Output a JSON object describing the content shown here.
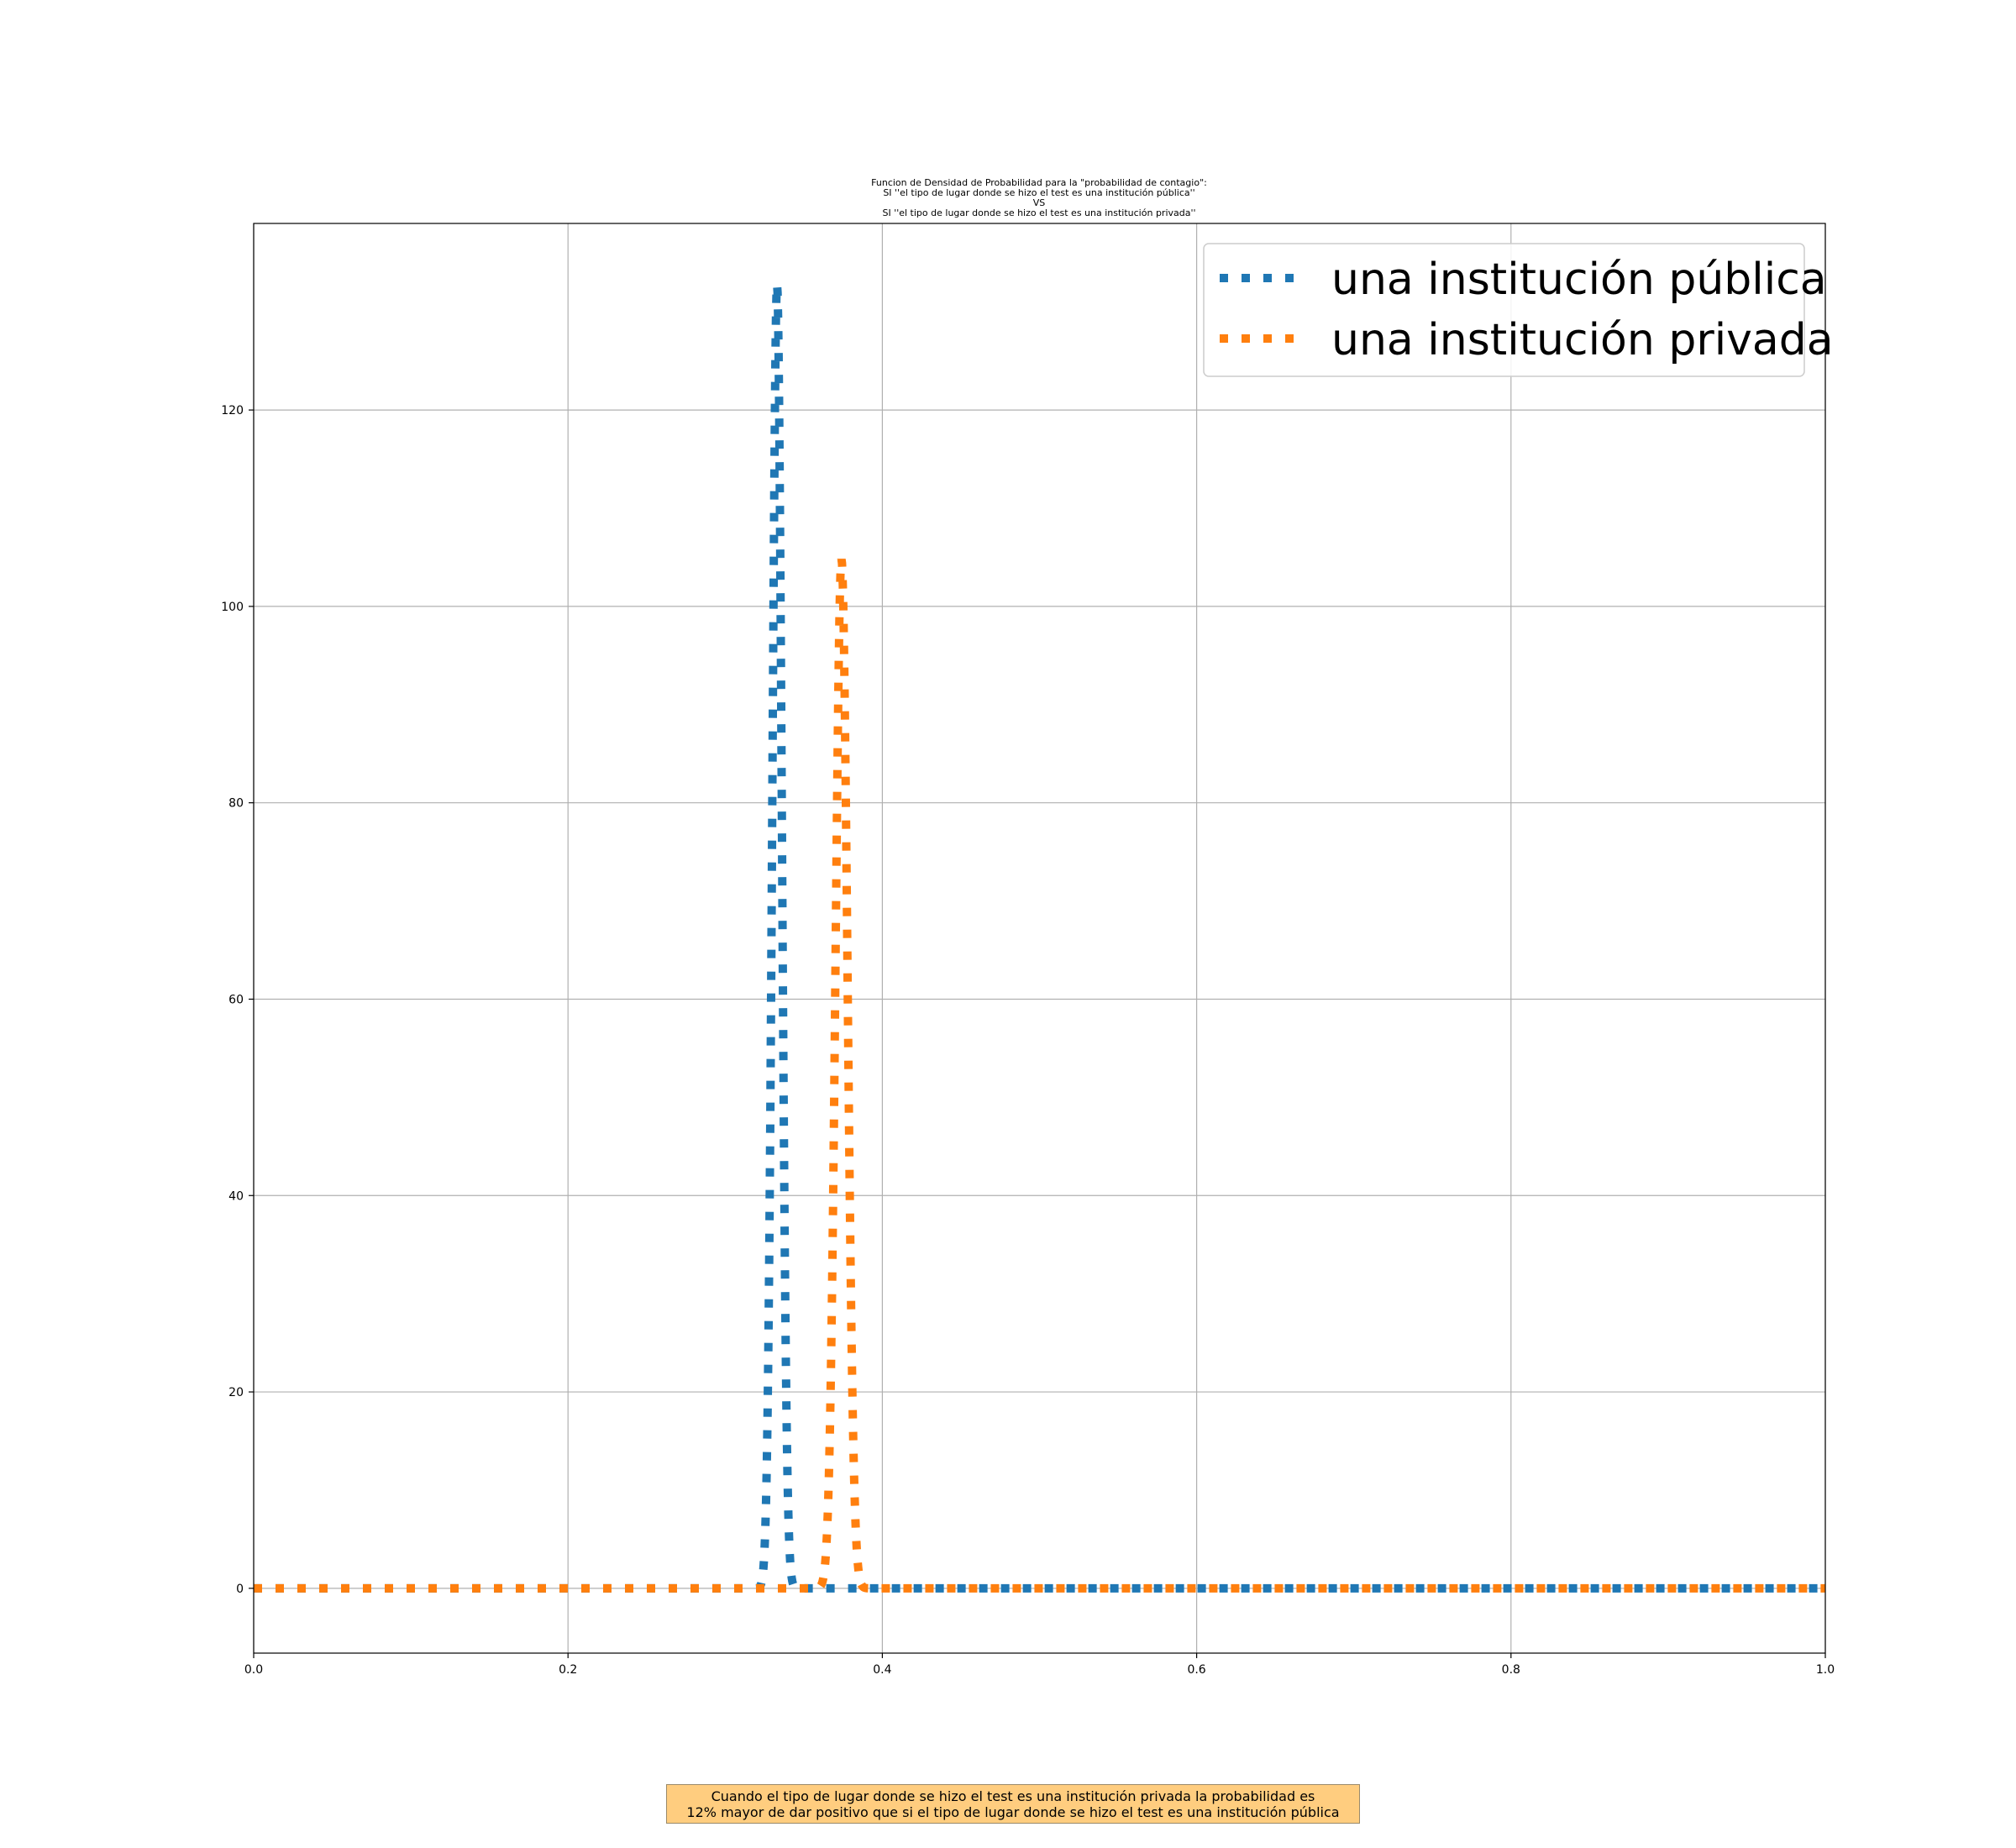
{
  "chart_data": {
    "type": "line",
    "title": "Funcion de Densidad de Probabilidad para la \"probabilidad de contagio\":",
    "title_lines": [
      "Funcion de Densidad de Probabilidad para la \"probabilidad de contagio\":",
      "SI ''el tipo de lugar donde se hizo el test es una institución pública''",
      "VS",
      "SI ''el tipo de lugar donde se hizo el test es una institución privada''"
    ],
    "xlabel": "",
    "ylabel": "",
    "xlim": [
      0.0,
      1.0
    ],
    "ylim": [
      -6.6,
      139
    ],
    "xticks": [
      0.0,
      0.2,
      0.4,
      0.6,
      0.8,
      1.0
    ],
    "xtick_labels": [
      "0.0",
      "0.2",
      "0.4",
      "0.6",
      "0.8",
      "1.0"
    ],
    "yticks": [
      0,
      20,
      40,
      60,
      80,
      100,
      120
    ],
    "ytick_labels": [
      "0",
      "20",
      "40",
      "60",
      "80",
      "100",
      "120"
    ],
    "grid": true,
    "legend_position": "upper right",
    "line_style": "dotted",
    "series": [
      {
        "name": "una institución pública",
        "color": "#1f77b4",
        "mean": 0.333,
        "peak": 132.8
      },
      {
        "name": "una institución privada",
        "color": "#ff7f0e",
        "mean": 0.374,
        "peak": 104.8
      }
    ]
  },
  "annotation": {
    "lines": [
      "Cuando el tipo de lugar donde se hizo el test es una institución privada la probabilidad es",
      "12% mayor de dar positivo que si el tipo de lugar donde se hizo el test es una institución pública"
    ],
    "background": "#ffcd7f"
  }
}
